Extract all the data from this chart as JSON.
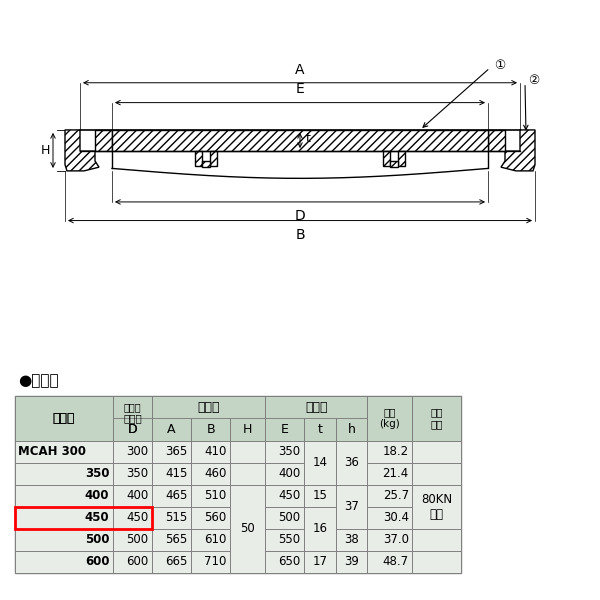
{
  "bg_color": "#ffffff",
  "title_section": "●仕　様",
  "rows": [
    [
      "MCAH 300",
      "300",
      "365",
      "410",
      "",
      "350",
      "14",
      "36",
      "18.2",
      ""
    ],
    [
      "350",
      "350",
      "415",
      "460",
      "",
      "400",
      "",
      "",
      "21.4",
      ""
    ],
    [
      "400",
      "400",
      "465",
      "510",
      "50",
      "450",
      "15",
      "37",
      "25.7",
      "80KN\n以上"
    ],
    [
      "450",
      "450",
      "515",
      "560",
      "",
      "500",
      "16",
      "",
      "30.4",
      ""
    ],
    [
      "500",
      "500",
      "565",
      "610",
      "",
      "550",
      "",
      "38",
      "37.0",
      ""
    ],
    [
      "600",
      "600",
      "665",
      "710",
      "",
      "650",
      "17",
      "39",
      "48.7",
      ""
    ]
  ],
  "merged": {
    "t_rows01": "14",
    "h_rows01": "36",
    "H_rows2345": "50",
    "h_rows23": "37",
    "t_rows34": "16",
    "kn_all": "80KN\n以上"
  },
  "highlight_row": 3,
  "table_bg": "#e8ede8",
  "header_bg": "#c5d5c5",
  "highlight_color": "#ff0000"
}
